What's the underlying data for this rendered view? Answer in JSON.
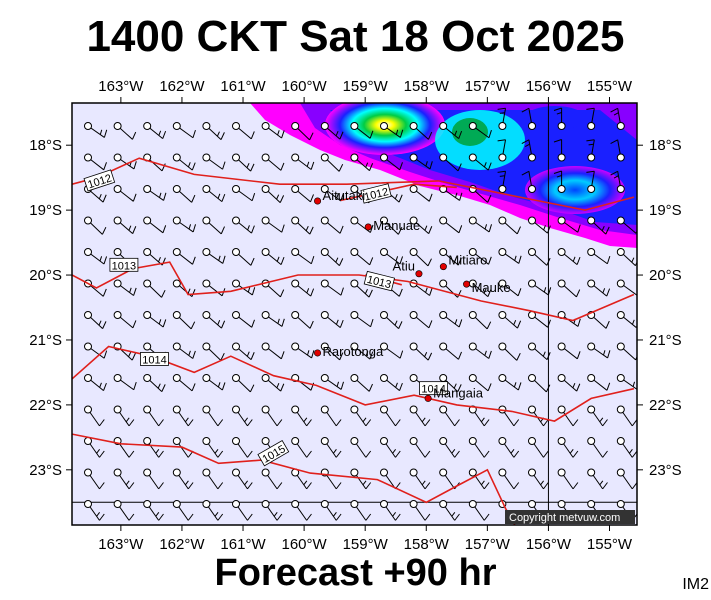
{
  "title": "1400 CKT Sat 18 Oct 2025",
  "footer": "Forecast +90 hr",
  "image_code": "IM2",
  "copyright": "Copyright metvuw.com",
  "map": {
    "lon_range": [
      163.8,
      154.55
    ],
    "lat_range": [
      17.35,
      23.85
    ],
    "lon_ticks": [
      {
        "lon": 163,
        "label": "163°W"
      },
      {
        "lon": 162,
        "label": "162°W"
      },
      {
        "lon": 161,
        "label": "161°W"
      },
      {
        "lon": 160,
        "label": "160°W"
      },
      {
        "lon": 159,
        "label": "159°W"
      },
      {
        "lon": 158,
        "label": "158°W"
      },
      {
        "lon": 157,
        "label": "157°W"
      },
      {
        "lon": 156,
        "label": "156°W"
      },
      {
        "lon": 155,
        "label": "155°W"
      }
    ],
    "lat_ticks": [
      {
        "lat": 18,
        "label": "18°S"
      },
      {
        "lat": 19,
        "label": "19°S"
      },
      {
        "lat": 20,
        "label": "20°S"
      },
      {
        "lat": 21,
        "label": "21°S"
      },
      {
        "lat": 22,
        "label": "22°S"
      },
      {
        "lat": 23,
        "label": "23°S"
      }
    ],
    "background_color": "#e8e8ff",
    "isobar_color": "#e0201c",
    "places": [
      {
        "name": "Aitutaki",
        "lon": 159.78,
        "lat": 18.86
      },
      {
        "name": "Manuae",
        "lon": 158.95,
        "lat": 19.26
      },
      {
        "name": "Mitiaro",
        "lon": 157.72,
        "lat": 19.87
      },
      {
        "name": "Atiu",
        "lon": 158.12,
        "lat": 19.98
      },
      {
        "name": "Mauke",
        "lon": 157.34,
        "lat": 20.14
      },
      {
        "name": "Rarotonga",
        "lon": 159.78,
        "lat": 21.2
      },
      {
        "name": "Mangaia",
        "lon": 157.97,
        "lat": 21.9
      }
    ],
    "isobars": [
      {
        "label": "1012",
        "label_lon": 163.35,
        "label_lat": 18.55,
        "label_angle": -18,
        "points": [
          [
            163.8,
            18.6
          ],
          [
            163.4,
            18.5
          ],
          [
            162.7,
            18.2
          ],
          [
            161.8,
            18.45
          ],
          [
            160.4,
            18.6
          ],
          [
            159.3,
            18.6
          ],
          [
            157.8,
            18.55
          ],
          [
            156.2,
            18.85
          ],
          [
            155.4,
            19.0
          ],
          [
            154.6,
            18.8
          ]
        ]
      },
      {
        "label": "1012",
        "label_lon": 158.82,
        "label_lat": 18.75,
        "label_angle": -14,
        "points": [
          [
            159.4,
            18.85
          ],
          [
            158.2,
            18.6
          ],
          [
            157.5,
            18.65
          ]
        ]
      },
      {
        "label": "1013",
        "label_lon": 162.95,
        "label_lat": 19.85,
        "label_angle": 0,
        "points": [
          [
            163.8,
            20.0
          ],
          [
            163.4,
            20.2
          ],
          [
            162.8,
            19.9
          ],
          [
            162.2,
            19.8
          ],
          [
            161.9,
            20.3
          ],
          [
            161.2,
            20.25
          ],
          [
            160.1,
            20.0
          ],
          [
            159.1,
            20.0
          ],
          [
            158.3,
            20.1
          ],
          [
            157.1,
            20.4
          ],
          [
            156.3,
            20.55
          ],
          [
            155.6,
            20.7
          ],
          [
            154.6,
            20.3
          ]
        ]
      },
      {
        "label": "1013",
        "label_lon": 158.77,
        "label_lat": 20.1,
        "label_angle": 14,
        "points": [
          [
            159.0,
            20.0
          ],
          [
            158.4,
            20.15
          ]
        ]
      },
      {
        "label": "1014",
        "label_lon": 162.45,
        "label_lat": 21.3,
        "label_angle": 0,
        "points": [
          [
            163.8,
            21.6
          ],
          [
            163.2,
            21.1
          ],
          [
            162.5,
            21.25
          ],
          [
            161.8,
            21.5
          ],
          [
            161.2,
            21.25
          ],
          [
            160.5,
            21.55
          ],
          [
            159.8,
            21.7
          ],
          [
            159.0,
            22.0
          ],
          [
            158.2,
            21.85
          ],
          [
            157.5,
            22.0
          ],
          [
            156.6,
            22.1
          ],
          [
            155.9,
            22.25
          ],
          [
            155.3,
            21.9
          ],
          [
            154.6,
            21.75
          ]
        ]
      },
      {
        "label": "1014",
        "label_lon": 157.88,
        "label_lat": 21.75,
        "label_angle": 0,
        "points": []
      },
      {
        "label": "1015",
        "label_lon": 160.5,
        "label_lat": 22.75,
        "label_angle": -30,
        "points": [
          [
            163.8,
            22.45
          ],
          [
            163.0,
            22.6
          ],
          [
            162.0,
            22.65
          ],
          [
            161.4,
            22.9
          ],
          [
            160.7,
            22.85
          ],
          [
            159.9,
            23.05
          ],
          [
            158.8,
            23.15
          ],
          [
            158.0,
            23.5
          ],
          [
            157.5,
            23.25
          ],
          [
            157.0,
            23.0
          ],
          [
            156.7,
            23.6
          ],
          [
            156.55,
            23.85
          ]
        ]
      }
    ],
    "reference_lines": [
      {
        "kind": "meridian",
        "lon": 156.0
      },
      {
        "kind": "parallel",
        "lat": 23.5
      }
    ]
  }
}
